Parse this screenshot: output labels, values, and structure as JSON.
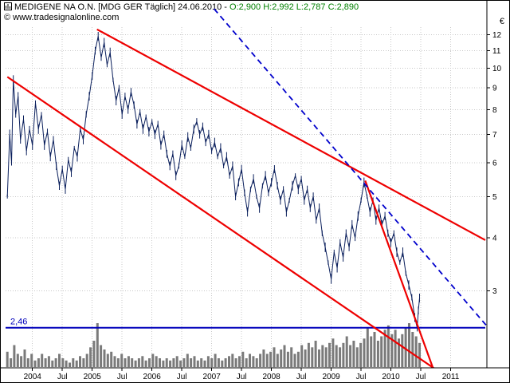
{
  "header": {
    "title": "MEDIGENE NA O.N. [MDG GER  Täglich] 24.06.2010",
    "separator": "-",
    "ohlc": "O:2,900 H:2,992 L:2,787 C:2,890",
    "copyright": "© www.tradesignalonline.com",
    "currency": "€"
  },
  "colors": {
    "price": "#0a1f5c",
    "trend": "#ee0000",
    "dashed": "#0000cc",
    "support": "#0000bb",
    "volume": "#7a7a7a",
    "grid": "#c8c8c8",
    "axis": "#000000",
    "ohlc_text": "#008000"
  },
  "chart_data": {
    "type": "line",
    "title": "MEDIGENE NA O.N. [MDG GER Täglich]",
    "date": "24.06.2010",
    "open": "2,900",
    "high": "2,992",
    "low": "2,787",
    "close": "2,890",
    "y_scale": "log",
    "ylim": [
      1.98,
      12.5
    ],
    "x_range": [
      2003.55,
      2011.58
    ],
    "y_ticks": [
      12,
      11,
      10,
      9,
      8,
      7,
      6,
      5,
      4,
      3
    ],
    "x_ticks": [
      {
        "pos": 2004.0,
        "label": "2004"
      },
      {
        "pos": 2004.5,
        "label": "Jul"
      },
      {
        "pos": 2005.0,
        "label": "2005"
      },
      {
        "pos": 2005.5,
        "label": "Jul"
      },
      {
        "pos": 2006.0,
        "label": "2006"
      },
      {
        "pos": 2006.5,
        "label": "Jul"
      },
      {
        "pos": 2007.0,
        "label": "2007"
      },
      {
        "pos": 2007.5,
        "label": "Jul"
      },
      {
        "pos": 2008.0,
        "label": "2008"
      },
      {
        "pos": 2008.5,
        "label": "Jul"
      },
      {
        "pos": 2009.0,
        "label": "2009"
      },
      {
        "pos": 2009.5,
        "label": "Jul"
      },
      {
        "pos": 2010.0,
        "label": "2010"
      },
      {
        "pos": 2010.5,
        "label": "Jul"
      },
      {
        "pos": 2011.0,
        "label": "2011"
      }
    ],
    "support_level": 2.46,
    "support_label": "2,46",
    "trend_lines": [
      {
        "name": "upper-channel",
        "style": "solid",
        "color": "#ee0000",
        "x1": 2005.08,
        "p1": 12.35,
        "x2": 2011.58,
        "p2": 3.95
      },
      {
        "name": "lower-channel",
        "style": "solid",
        "color": "#ee0000",
        "x1": 2003.58,
        "p1": 9.55,
        "x2": 2010.78,
        "p2": 1.95
      },
      {
        "name": "wedge-line",
        "style": "solid",
        "color": "#ee0000",
        "x1": 2009.57,
        "p1": 5.45,
        "x2": 2010.72,
        "p2": 1.95
      },
      {
        "name": "projection",
        "style": "dashed",
        "color": "#0000cc",
        "x1": 2007.04,
        "p1": 13.8,
        "x2": 2011.63,
        "p2": 2.46
      }
    ],
    "price_series": [
      [
        2003.58,
        5.0
      ],
      [
        2003.62,
        7.0
      ],
      [
        2003.65,
        6.0
      ],
      [
        2003.68,
        9.4
      ],
      [
        2003.72,
        7.8
      ],
      [
        2003.76,
        8.6
      ],
      [
        2003.8,
        6.8
      ],
      [
        2003.85,
        7.6
      ],
      [
        2003.9,
        6.4
      ],
      [
        2003.95,
        7.2
      ],
      [
        2004.0,
        6.6
      ],
      [
        2004.05,
        8.3
      ],
      [
        2004.1,
        7.2
      ],
      [
        2004.15,
        7.8
      ],
      [
        2004.2,
        6.6
      ],
      [
        2004.25,
        7.1
      ],
      [
        2004.3,
        6.2
      ],
      [
        2004.35,
        6.8
      ],
      [
        2004.4,
        5.9
      ],
      [
        2004.45,
        5.3
      ],
      [
        2004.5,
        5.8
      ],
      [
        2004.55,
        5.2
      ],
      [
        2004.6,
        6.1
      ],
      [
        2004.65,
        5.7
      ],
      [
        2004.7,
        6.5
      ],
      [
        2004.75,
        6.2
      ],
      [
        2004.8,
        7.2
      ],
      [
        2004.85,
        6.8
      ],
      [
        2004.9,
        7.8
      ],
      [
        2004.95,
        8.6
      ],
      [
        2005.0,
        9.6
      ],
      [
        2005.05,
        11.0
      ],
      [
        2005.1,
        11.9
      ],
      [
        2005.15,
        10.6
      ],
      [
        2005.2,
        11.5
      ],
      [
        2005.25,
        10.2
      ],
      [
        2005.3,
        10.9
      ],
      [
        2005.35,
        9.4
      ],
      [
        2005.4,
        8.4
      ],
      [
        2005.45,
        9.0
      ],
      [
        2005.5,
        7.8
      ],
      [
        2005.55,
        8.6
      ],
      [
        2005.6,
        8.0
      ],
      [
        2005.65,
        8.8
      ],
      [
        2005.7,
        8.2
      ],
      [
        2005.75,
        7.4
      ],
      [
        2005.8,
        7.9
      ],
      [
        2005.85,
        7.2
      ],
      [
        2005.9,
        7.7
      ],
      [
        2005.95,
        7.1
      ],
      [
        2006.0,
        7.5
      ],
      [
        2006.05,
        7.0
      ],
      [
        2006.1,
        7.4
      ],
      [
        2006.15,
        6.6
      ],
      [
        2006.2,
        7.0
      ],
      [
        2006.25,
        6.3
      ],
      [
        2006.3,
        5.9
      ],
      [
        2006.35,
        6.3
      ],
      [
        2006.4,
        5.6
      ],
      [
        2006.45,
        5.9
      ],
      [
        2006.5,
        6.6
      ],
      [
        2006.55,
        6.2
      ],
      [
        2006.6,
        6.9
      ],
      [
        2006.65,
        6.5
      ],
      [
        2006.7,
        7.2
      ],
      [
        2006.75,
        7.5
      ],
      [
        2006.8,
        7.0
      ],
      [
        2006.85,
        7.3
      ],
      [
        2006.9,
        6.7
      ],
      [
        2006.95,
        7.0
      ],
      [
        2007.0,
        6.4
      ],
      [
        2007.05,
        6.7
      ],
      [
        2007.1,
        6.2
      ],
      [
        2007.15,
        6.5
      ],
      [
        2007.2,
        5.9
      ],
      [
        2007.25,
        6.2
      ],
      [
        2007.3,
        5.6
      ],
      [
        2007.35,
        5.9
      ],
      [
        2007.4,
        5.0
      ],
      [
        2007.45,
        5.4
      ],
      [
        2007.5,
        5.8
      ],
      [
        2007.55,
        5.1
      ],
      [
        2007.6,
        4.6
      ],
      [
        2007.65,
        5.2
      ],
      [
        2007.7,
        5.5
      ],
      [
        2007.75,
        5.0
      ],
      [
        2007.8,
        4.7
      ],
      [
        2007.85,
        5.3
      ],
      [
        2007.9,
        5.6
      ],
      [
        2007.95,
        5.1
      ],
      [
        2008.0,
        5.4
      ],
      [
        2008.05,
        5.8
      ],
      [
        2008.1,
        5.3
      ],
      [
        2008.15,
        4.9
      ],
      [
        2008.2,
        5.2
      ],
      [
        2008.25,
        4.6
      ],
      [
        2008.3,
        4.9
      ],
      [
        2008.35,
        5.3
      ],
      [
        2008.4,
        5.6
      ],
      [
        2008.45,
        5.2
      ],
      [
        2008.5,
        5.5
      ],
      [
        2008.55,
        4.9
      ],
      [
        2008.6,
        5.2
      ],
      [
        2008.65,
        4.7
      ],
      [
        2008.7,
        5.0
      ],
      [
        2008.75,
        4.4
      ],
      [
        2008.8,
        4.7
      ],
      [
        2008.85,
        4.1
      ],
      [
        2008.9,
        3.8
      ],
      [
        2008.95,
        3.5
      ],
      [
        2009.0,
        3.2
      ],
      [
        2009.05,
        3.7
      ],
      [
        2009.1,
        3.4
      ],
      [
        2009.15,
        3.9
      ],
      [
        2009.2,
        3.6
      ],
      [
        2009.25,
        4.1
      ],
      [
        2009.3,
        3.8
      ],
      [
        2009.35,
        4.3
      ],
      [
        2009.4,
        4.0
      ],
      [
        2009.45,
        4.5
      ],
      [
        2009.5,
        4.9
      ],
      [
        2009.55,
        5.4
      ],
      [
        2009.6,
        5.0
      ],
      [
        2009.65,
        4.6
      ],
      [
        2009.7,
        4.9
      ],
      [
        2009.75,
        4.4
      ],
      [
        2009.8,
        4.7
      ],
      [
        2009.85,
        4.3
      ],
      [
        2009.9,
        4.5
      ],
      [
        2009.95,
        4.1
      ],
      [
        2010.0,
        3.9
      ],
      [
        2010.05,
        4.1
      ],
      [
        2010.1,
        3.7
      ],
      [
        2010.15,
        3.5
      ],
      [
        2010.2,
        3.7
      ],
      [
        2010.25,
        3.3
      ],
      [
        2010.3,
        3.1
      ],
      [
        2010.35,
        2.9
      ],
      [
        2010.4,
        2.6
      ],
      [
        2010.44,
        2.46
      ],
      [
        2010.46,
        2.7
      ],
      [
        2010.48,
        2.89
      ]
    ],
    "volume_range": [
      2003.58,
      2010.48
    ],
    "volume": [
      0.35,
      0.2,
      0.5,
      0.3,
      0.25,
      0.4,
      0.2,
      0.3,
      0.15,
      0.2,
      0.3,
      0.2,
      0.25,
      0.15,
      0.2,
      0.3,
      0.2,
      0.15,
      0.1,
      0.2,
      0.15,
      0.25,
      0.2,
      0.3,
      0.45,
      0.6,
      1.0,
      0.5,
      0.4,
      0.3,
      0.35,
      0.25,
      0.2,
      0.3,
      0.2,
      0.25,
      0.2,
      0.15,
      0.2,
      0.25,
      0.15,
      0.2,
      0.3,
      0.25,
      0.2,
      0.15,
      0.2,
      0.15,
      0.2,
      0.25,
      0.15,
      0.2,
      0.3,
      0.2,
      0.25,
      0.15,
      0.2,
      0.15,
      0.25,
      0.2,
      0.3,
      0.2,
      0.15,
      0.2,
      0.25,
      0.3,
      0.2,
      0.25,
      0.35,
      0.2,
      0.3,
      0.25,
      0.2,
      0.3,
      0.4,
      0.3,
      0.35,
      0.45,
      0.3,
      0.4,
      0.5,
      0.35,
      0.45,
      0.3,
      0.35,
      0.5,
      0.4,
      0.55,
      0.45,
      0.6,
      0.4,
      0.5,
      0.45,
      0.55,
      0.65,
      0.5,
      0.45,
      0.55,
      0.7,
      0.5,
      0.6,
      0.45,
      0.55,
      0.65,
      0.9,
      0.7,
      0.8,
      0.6,
      0.7,
      0.85,
      0.95,
      0.75,
      0.85,
      0.65,
      0.75,
      0.9,
      1.0,
      0.8,
      0.7,
      0.55
    ]
  }
}
